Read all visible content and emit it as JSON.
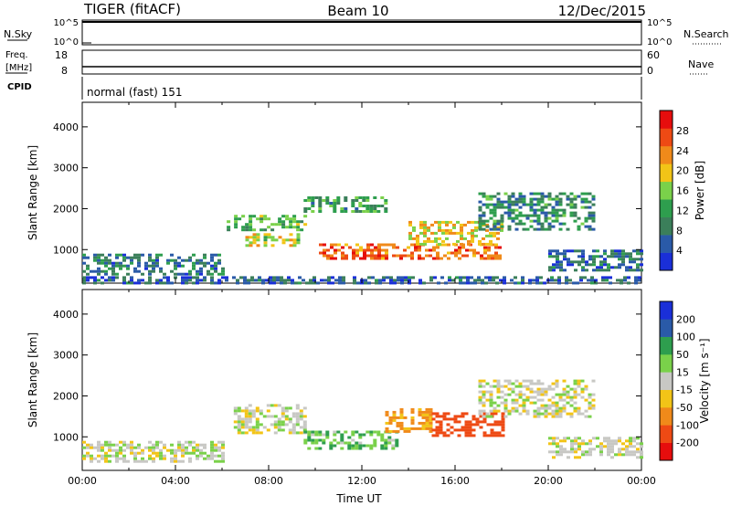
{
  "header": {
    "radar": "TIGER (fitACF)",
    "beam": "Beam 10",
    "date": "12/Dec/2015"
  },
  "top_panels": {
    "nsky_label": "N.Sky",
    "nsearch_label": "N.Search",
    "nsky_ticks": [
      "10^5",
      "10^0"
    ],
    "nsearch_ticks": [
      "10^5",
      "10^0"
    ],
    "freq_label_1": "Freq.",
    "freq_label_2": "[MHz]",
    "freq_ticks": [
      "18",
      "8"
    ],
    "nave_label": "Nave",
    "nave_ticks": [
      "60",
      "0"
    ],
    "cpid_label": "CPID",
    "cpid_value": "normal (fast) 151"
  },
  "colors": {
    "power_scale": [
      "#1a2fd8",
      "#2a5aa8",
      "#3b7f5a",
      "#2e9e4e",
      "#7ad14a",
      "#f2c417",
      "#f08a1a",
      "#ee4a14",
      "#e60d0d"
    ],
    "velocity_scale": [
      "#e60d0d",
      "#ee4a14",
      "#f08a1a",
      "#f2c417",
      "#c8c8c4",
      "#7ad14a",
      "#2e9e4e",
      "#2a5aa8",
      "#1a2fd8"
    ]
  },
  "chart_data": [
    {
      "type": "heatmap",
      "name": "power",
      "ylabel": "Slant Range [km]",
      "yticks": [
        "4000",
        "3000",
        "2000",
        "1000"
      ],
      "ylim": [
        180,
        4600
      ],
      "xlim": [
        0,
        24
      ],
      "colorbar_label": "Power [dB]",
      "colorbar_ticks": [
        "28",
        "24",
        "20",
        "16",
        "12",
        "8",
        "4"
      ],
      "colorbar_range": [
        0,
        32
      ],
      "regions": [
        {
          "x": [
            0.0,
            6.0
          ],
          "y": [
            400,
            900
          ],
          "v": 8
        },
        {
          "x": [
            6.2,
            9.5
          ],
          "y": [
            1450,
            1850
          ],
          "v": 14
        },
        {
          "x": [
            7.0,
            9.2
          ],
          "y": [
            1100,
            1400
          ],
          "v": 18
        },
        {
          "x": [
            9.5,
            13.0
          ],
          "y": [
            1900,
            2300
          ],
          "v": 12
        },
        {
          "x": [
            10.0,
            18.0
          ],
          "y": [
            750,
            1150
          ],
          "v": 25
        },
        {
          "x": [
            14.0,
            18.0
          ],
          "y": [
            1100,
            1700
          ],
          "v": 20
        },
        {
          "x": [
            17.0,
            22.0
          ],
          "y": [
            1500,
            2400
          ],
          "v": 10
        },
        {
          "x": [
            20.0,
            24.0
          ],
          "y": [
            500,
            1000
          ],
          "v": 7
        },
        {
          "x": [
            0.0,
            24.0
          ],
          "y": [
            180,
            350
          ],
          "v": 6
        }
      ]
    },
    {
      "type": "heatmap",
      "name": "velocity",
      "ylabel": "Slant Range [km]",
      "xlabel": "Time UT",
      "yticks": [
        "4000",
        "3000",
        "2000",
        "1000"
      ],
      "xticks": [
        "00:00",
        "04:00",
        "08:00",
        "12:00",
        "16:00",
        "20:00",
        "00:00"
      ],
      "ylim": [
        180,
        4600
      ],
      "xlim": [
        0,
        24
      ],
      "colorbar_label": "Velocity [m s⁻¹]",
      "colorbar_ticks": [
        "200",
        "100",
        "50",
        "15",
        "-15",
        "-50",
        "-100",
        "-200"
      ],
      "regions": [
        {
          "x": [
            0.0,
            6.0
          ],
          "y": [
            400,
            900
          ],
          "v": 0
        },
        {
          "x": [
            6.5,
            9.5
          ],
          "y": [
            1100,
            1800
          ],
          "v": 0
        },
        {
          "x": [
            9.5,
            13.5
          ],
          "y": [
            700,
            1150
          ],
          "v": 40
        },
        {
          "x": [
            13.0,
            15.0
          ],
          "y": [
            1100,
            1700
          ],
          "v": -60
        },
        {
          "x": [
            15.0,
            18.0
          ],
          "y": [
            1000,
            1600
          ],
          "v": -150
        },
        {
          "x": [
            17.0,
            22.0
          ],
          "y": [
            1500,
            2400
          ],
          "v": 0
        },
        {
          "x": [
            20.0,
            24.0
          ],
          "y": [
            500,
            1000
          ],
          "v": 0
        }
      ]
    }
  ]
}
